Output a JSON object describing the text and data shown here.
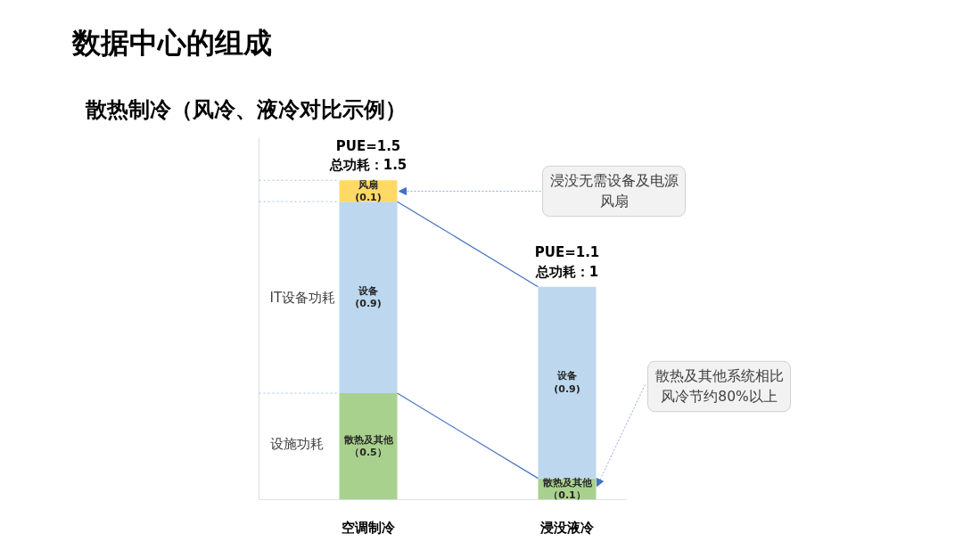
{
  "chart_data": {
    "type": "bar",
    "title": "数据中心的组成",
    "subtitle": "散热制冷（风冷、液冷对比示例）",
    "categories": [
      "空调制冷",
      "浸没液冷"
    ],
    "stacked": true,
    "series": [
      {
        "name": "散热及其他",
        "color": "#a9d18e",
        "values": [
          0.5,
          0.1
        ],
        "value_labels": [
          "（0.5）",
          "（0.1）"
        ]
      },
      {
        "name": "设备",
        "color": "#bdd7ee",
        "values": [
          0.9,
          0.9
        ],
        "value_labels": [
          "(0.9)",
          "(0.9)"
        ]
      },
      {
        "name": "风扇",
        "color": "#ffd966",
        "values": [
          0.1,
          null
        ],
        "value_labels": [
          "(0.1)",
          null
        ]
      }
    ],
    "totals": [
      "PUE=1.5\n总功耗：1.5",
      "PUE=1.1\n总功耗：1"
    ],
    "ylim": [
      0,
      1.7
    ],
    "tick_labels": "x",
    "ref_lines": [
      {
        "axis": "y",
        "value": 1.5,
        "color": "#9dc3e6",
        "line_style": "dotted"
      },
      {
        "axis": "y",
        "value": 1.4,
        "color": "#9dc3e6",
        "line_style": "dotted"
      },
      {
        "axis": "y",
        "value": 0.5,
        "color": "#9dc3e6",
        "line_style": "dotted"
      }
    ],
    "annotations": [
      "IT设备功耗",
      "设施功耗",
      "浸没无需设备及电源风扇",
      "散热及其他系统相比风冷节约80%以上"
    ]
  }
}
